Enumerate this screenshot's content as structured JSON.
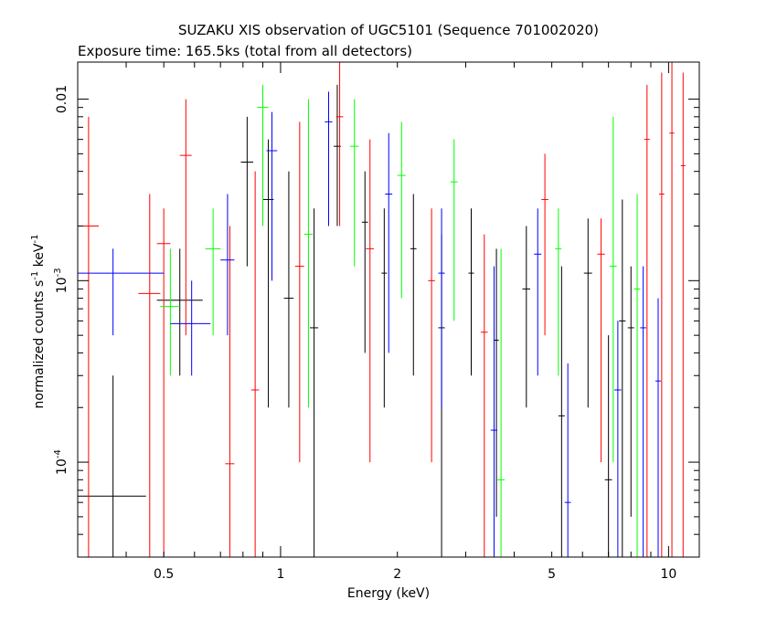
{
  "chart_data": {
    "type": "scatter",
    "title": "SUZAKU XIS observation of UGC5101 (Sequence 701002020)",
    "subtitle": "Exposure time: 165.5ks (total from all detectors)",
    "xlabel": "Energy (keV)",
    "ylabel_main": "normalized counts s",
    "ylabel_sup1": "-1",
    "ylabel_mid": " keV",
    "ylabel_sup2": "-1",
    "xscale": "log",
    "yscale": "log",
    "xlim": [
      0.3,
      12
    ],
    "ylim": [
      3e-05,
      0.016
    ],
    "x_ticks": [
      {
        "value": 0.5,
        "label": "0.5"
      },
      {
        "value": 1,
        "label": "1"
      },
      {
        "value": 2,
        "label": "2"
      },
      {
        "value": 5,
        "label": "5"
      },
      {
        "value": 10,
        "label": "10"
      }
    ],
    "y_ticks": [
      {
        "value": 0.0001,
        "base": "10",
        "exp": "-4"
      },
      {
        "value": 0.001,
        "base": "10",
        "exp": "-3"
      },
      {
        "value": 0.01,
        "base": "0.01",
        "exp": ""
      }
    ],
    "series": [
      {
        "color": "#000000",
        "points": [
          {
            "x": 0.37,
            "xlo": 0.3,
            "xhi": 0.45,
            "y": 6.5e-05,
            "ylo": 3e-05,
            "yhi": 0.0003
          },
          {
            "x": 0.55,
            "xlo": 0.48,
            "xhi": 0.63,
            "y": 0.00078,
            "ylo": 0.0003,
            "yhi": 0.0015
          },
          {
            "x": 0.82,
            "xlo": 0.79,
            "xhi": 0.85,
            "y": 0.0045,
            "ylo": 0.0012,
            "yhi": 0.008
          },
          {
            "x": 0.93,
            "xlo": 0.9,
            "xhi": 0.96,
            "y": 0.0028,
            "ylo": 0.0002,
            "yhi": 0.006
          },
          {
            "x": 1.05,
            "xlo": 1.02,
            "xhi": 1.08,
            "y": 0.0008,
            "ylo": 0.0002,
            "yhi": 0.004
          },
          {
            "x": 1.22,
            "xlo": 1.19,
            "xhi": 1.25,
            "y": 0.00055,
            "ylo": 3e-05,
            "yhi": 0.0025
          },
          {
            "x": 1.4,
            "xlo": 1.37,
            "xhi": 1.43,
            "y": 0.0055,
            "ylo": 0.002,
            "yhi": 0.012
          },
          {
            "x": 1.65,
            "xlo": 1.62,
            "xhi": 1.68,
            "y": 0.0021,
            "ylo": 0.0004,
            "yhi": 0.004
          },
          {
            "x": 1.85,
            "xlo": 1.82,
            "xhi": 1.88,
            "y": 0.0011,
            "ylo": 0.0002,
            "yhi": 0.0025
          },
          {
            "x": 2.2,
            "xlo": 2.16,
            "xhi": 2.24,
            "y": 0.0015,
            "ylo": 0.0003,
            "yhi": 0.003
          },
          {
            "x": 2.6,
            "xlo": 2.55,
            "xhi": 2.65,
            "y": 0.00055,
            "ylo": 3e-05,
            "yhi": 0.0018
          },
          {
            "x": 3.1,
            "xlo": 3.05,
            "xhi": 3.15,
            "y": 0.0011,
            "ylo": 0.0003,
            "yhi": 0.0025
          },
          {
            "x": 3.6,
            "xlo": 3.55,
            "xhi": 3.65,
            "y": 0.00047,
            "ylo": 5e-05,
            "yhi": 0.0015
          },
          {
            "x": 4.3,
            "xlo": 4.2,
            "xhi": 4.4,
            "y": 0.0009,
            "ylo": 0.0002,
            "yhi": 0.002
          },
          {
            "x": 5.3,
            "xlo": 5.2,
            "xhi": 5.4,
            "y": 0.00018,
            "ylo": 3e-05,
            "yhi": 0.0012
          },
          {
            "x": 6.2,
            "xlo": 6.05,
            "xhi": 6.35,
            "y": 0.0011,
            "ylo": 0.0002,
            "yhi": 0.0022
          },
          {
            "x": 7.0,
            "xlo": 6.85,
            "xhi": 7.15,
            "y": 8e-05,
            "ylo": 3e-05,
            "yhi": 0.0005
          },
          {
            "x": 7.6,
            "xlo": 7.45,
            "xhi": 7.75,
            "y": 0.0006,
            "ylo": 3e-05,
            "yhi": 0.0028
          },
          {
            "x": 8.0,
            "xlo": 7.85,
            "xhi": 8.15,
            "y": 0.00055,
            "ylo": 5e-05,
            "yhi": 0.0012
          }
        ]
      },
      {
        "color": "#ff0000",
        "points": [
          {
            "x": 0.32,
            "xlo": 0.3,
            "xhi": 0.34,
            "y": 0.002,
            "ylo": 3e-05,
            "yhi": 0.008
          },
          {
            "x": 0.46,
            "xlo": 0.43,
            "xhi": 0.49,
            "y": 0.00085,
            "ylo": 3e-05,
            "yhi": 0.003
          },
          {
            "x": 0.5,
            "xlo": 0.48,
            "xhi": 0.52,
            "y": 0.0016,
            "ylo": 3e-05,
            "yhi": 0.0025
          },
          {
            "x": 0.57,
            "xlo": 0.55,
            "xhi": 0.59,
            "y": 0.0049,
            "ylo": 0.0005,
            "yhi": 0.01
          },
          {
            "x": 0.74,
            "xlo": 0.72,
            "xhi": 0.76,
            "y": 9.8e-05,
            "ylo": 3e-05,
            "yhi": 0.002
          },
          {
            "x": 0.86,
            "xlo": 0.84,
            "xhi": 0.88,
            "y": 0.00025,
            "ylo": 3e-05,
            "yhi": 0.004
          },
          {
            "x": 1.12,
            "xlo": 1.09,
            "xhi": 1.15,
            "y": 0.0012,
            "ylo": 0.0001,
            "yhi": 0.0075
          },
          {
            "x": 1.42,
            "xlo": 1.39,
            "xhi": 1.45,
            "y": 0.008,
            "ylo": 0.002,
            "yhi": 0.016
          },
          {
            "x": 1.7,
            "xlo": 1.66,
            "xhi": 1.74,
            "y": 0.0015,
            "ylo": 0.0001,
            "yhi": 0.006
          },
          {
            "x": 2.45,
            "xlo": 2.4,
            "xhi": 2.5,
            "y": 0.001,
            "ylo": 0.0001,
            "yhi": 0.0025
          },
          {
            "x": 3.35,
            "xlo": 3.28,
            "xhi": 3.42,
            "y": 0.00052,
            "ylo": 3e-05,
            "yhi": 0.0018
          },
          {
            "x": 4.8,
            "xlo": 4.7,
            "xhi": 4.9,
            "y": 0.0028,
            "ylo": 0.0005,
            "yhi": 0.005
          },
          {
            "x": 6.7,
            "xlo": 6.55,
            "xhi": 6.85,
            "y": 0.0014,
            "ylo": 0.0001,
            "yhi": 0.0022
          },
          {
            "x": 8.8,
            "xlo": 8.65,
            "xhi": 8.95,
            "y": 0.006,
            "ylo": 3e-05,
            "yhi": 0.012
          },
          {
            "x": 9.6,
            "xlo": 9.45,
            "xhi": 9.75,
            "y": 0.003,
            "ylo": 3e-05,
            "yhi": 0.014
          },
          {
            "x": 10.2,
            "xlo": 10.05,
            "xhi": 10.35,
            "y": 0.0065,
            "ylo": 3e-05,
            "yhi": 0.016
          },
          {
            "x": 10.9,
            "xlo": 10.75,
            "xhi": 11.05,
            "y": 0.0043,
            "ylo": 3e-05,
            "yhi": 0.014
          }
        ]
      },
      {
        "color": "#00ff00",
        "points": [
          {
            "x": 0.52,
            "xlo": 0.49,
            "xhi": 0.55,
            "y": 0.00072,
            "ylo": 0.0003,
            "yhi": 0.0015
          },
          {
            "x": 0.67,
            "xlo": 0.64,
            "xhi": 0.7,
            "y": 0.0015,
            "ylo": 0.0005,
            "yhi": 0.0025
          },
          {
            "x": 0.9,
            "xlo": 0.87,
            "xhi": 0.93,
            "y": 0.009,
            "ylo": 0.002,
            "yhi": 0.012
          },
          {
            "x": 1.18,
            "xlo": 1.15,
            "xhi": 1.21,
            "y": 0.0018,
            "ylo": 0.0002,
            "yhi": 0.01
          },
          {
            "x": 1.55,
            "xlo": 1.51,
            "xhi": 1.59,
            "y": 0.0055,
            "ylo": 0.0012,
            "yhi": 0.01
          },
          {
            "x": 2.05,
            "xlo": 2.0,
            "xhi": 2.1,
            "y": 0.0038,
            "ylo": 0.0008,
            "yhi": 0.0075
          },
          {
            "x": 2.8,
            "xlo": 2.74,
            "xhi": 2.86,
            "y": 0.0035,
            "ylo": 0.0006,
            "yhi": 0.006
          },
          {
            "x": 3.7,
            "xlo": 3.62,
            "xhi": 3.78,
            "y": 8e-05,
            "ylo": 3e-05,
            "yhi": 0.0015
          },
          {
            "x": 5.2,
            "xlo": 5.1,
            "xhi": 5.3,
            "y": 0.0015,
            "ylo": 0.0003,
            "yhi": 0.0025
          },
          {
            "x": 7.2,
            "xlo": 7.05,
            "xhi": 7.35,
            "y": 0.0012,
            "ylo": 0.0001,
            "yhi": 0.008
          },
          {
            "x": 8.3,
            "xlo": 8.15,
            "xhi": 8.45,
            "y": 0.0009,
            "ylo": 3e-05,
            "yhi": 0.003
          }
        ]
      },
      {
        "color": "#0000ff",
        "points": [
          {
            "x": 0.37,
            "xlo": 0.3,
            "xhi": 0.5,
            "y": 0.0011,
            "ylo": 0.0005,
            "yhi": 0.0015
          },
          {
            "x": 0.59,
            "xlo": 0.52,
            "xhi": 0.66,
            "y": 0.00058,
            "ylo": 0.0003,
            "yhi": 0.001
          },
          {
            "x": 0.73,
            "xlo": 0.7,
            "xhi": 0.76,
            "y": 0.0013,
            "ylo": 0.0005,
            "yhi": 0.003
          },
          {
            "x": 0.95,
            "xlo": 0.92,
            "xhi": 0.98,
            "y": 0.0052,
            "ylo": 0.001,
            "yhi": 0.0085
          },
          {
            "x": 1.33,
            "xlo": 1.3,
            "xhi": 1.36,
            "y": 0.0075,
            "ylo": 0.002,
            "yhi": 0.011
          },
          {
            "x": 1.9,
            "xlo": 1.86,
            "xhi": 1.94,
            "y": 0.003,
            "ylo": 0.0004,
            "yhi": 0.0065
          },
          {
            "x": 2.6,
            "xlo": 2.55,
            "xhi": 2.65,
            "y": 0.0011,
            "ylo": 0.0002,
            "yhi": 0.0025
          },
          {
            "x": 3.55,
            "xlo": 3.48,
            "xhi": 3.62,
            "y": 0.00015,
            "ylo": 3e-05,
            "yhi": 0.0012
          },
          {
            "x": 4.6,
            "xlo": 4.5,
            "xhi": 4.7,
            "y": 0.0014,
            "ylo": 0.0003,
            "yhi": 0.0025
          },
          {
            "x": 5.5,
            "xlo": 5.4,
            "xhi": 5.6,
            "y": 6e-05,
            "ylo": 3e-05,
            "yhi": 0.00035
          },
          {
            "x": 7.4,
            "xlo": 7.25,
            "xhi": 7.55,
            "y": 0.00025,
            "ylo": 3e-05,
            "yhi": 0.0006
          },
          {
            "x": 8.6,
            "xlo": 8.45,
            "xhi": 8.75,
            "y": 0.00055,
            "ylo": 3e-05,
            "yhi": 0.0012
          },
          {
            "x": 9.4,
            "xlo": 9.25,
            "xhi": 9.55,
            "y": 0.00028,
            "ylo": 3e-05,
            "yhi": 0.0008
          }
        ]
      }
    ]
  }
}
